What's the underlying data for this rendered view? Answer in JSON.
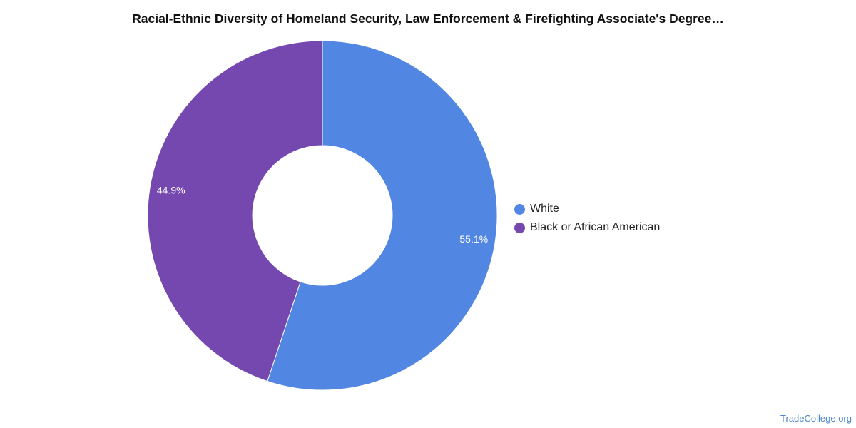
{
  "chart_data": {
    "type": "pie",
    "title": "Racial-Ethnic Diversity of Homeland Security, Law Enforcement & Firefighting Associate's Degree…",
    "slices": [
      {
        "label": "White",
        "value": 55.1,
        "display": "55.1%",
        "color": "#5286e3"
      },
      {
        "label": "Black or African American",
        "value": 44.9,
        "display": "44.9%",
        "color": "#7548b0"
      }
    ],
    "legend_placement": "right",
    "donut": true
  },
  "watermark": "TradeCollege.org"
}
